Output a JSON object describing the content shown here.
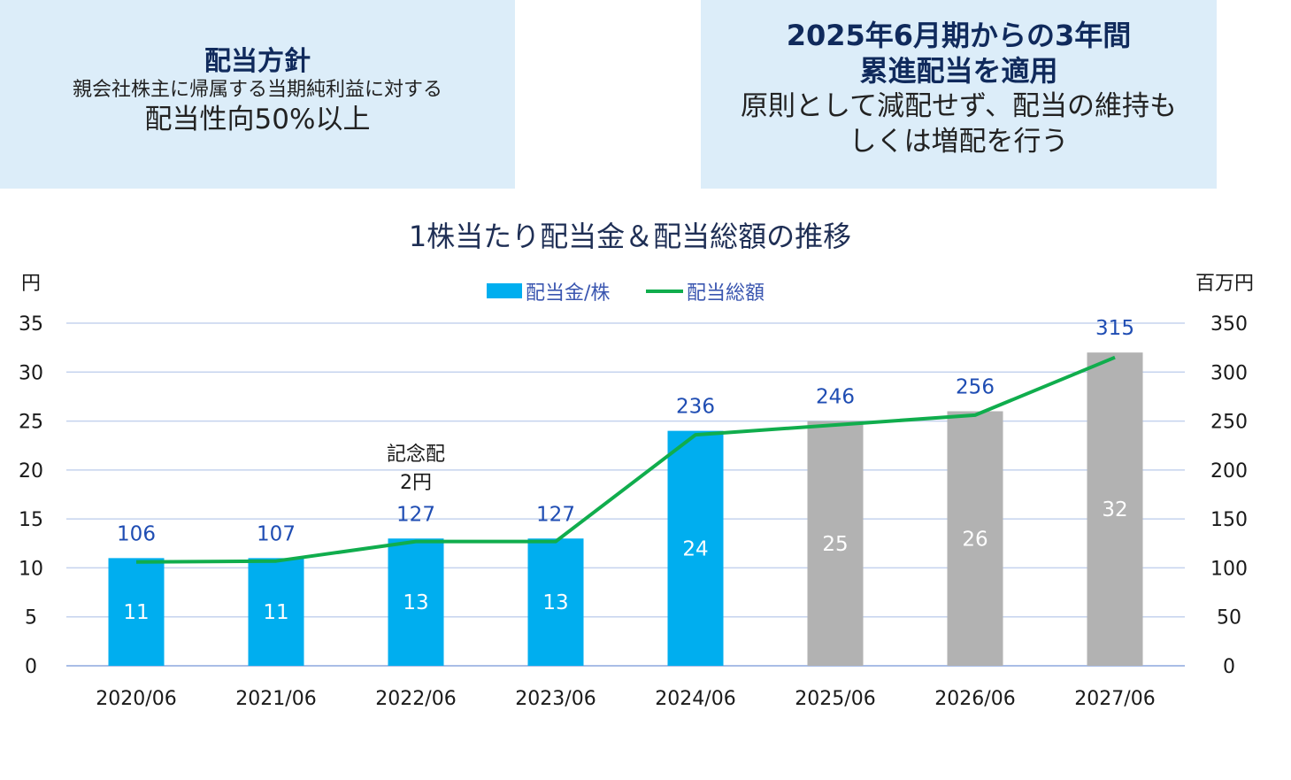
{
  "policy_box": {
    "heading": "配当方針",
    "line1": "親会社株主に帰属する当期純利益に対する",
    "line2": "配当性向50%以上"
  },
  "progressive_box": {
    "heading_line1": "2025年6月期からの3年間",
    "heading_line2": "累進配当を適用",
    "body_line1": "原則として減配せず、配当の維持も",
    "body_line2": "しくは増配を行う"
  },
  "chart_data": {
    "type": "bar",
    "title": "1株当たり配当金＆配当総額の推移",
    "left_unit": "円",
    "right_unit": "百万円",
    "categories": [
      "2020/06",
      "2021/06",
      "2022/06",
      "2023/06",
      "2024/06",
      "2025/06",
      "2026/06",
      "2027/06"
    ],
    "series": [
      {
        "name": "配当金/株",
        "type": "bar",
        "axis": "left",
        "values": [
          11,
          11,
          13,
          13,
          24,
          25,
          26,
          32
        ],
        "forecast_from_index": 5
      },
      {
        "name": "配当総額",
        "type": "line",
        "axis": "right",
        "values": [
          106,
          107,
          127,
          127,
          236,
          246,
          256,
          315
        ]
      }
    ],
    "left_ticks": [
      "0",
      "5",
      "10",
      "15",
      "20",
      "25",
      "30",
      "35"
    ],
    "right_ticks": [
      "0",
      "50",
      "100",
      "150",
      "200",
      "250",
      "300",
      "350"
    ],
    "ylim_left": [
      0,
      35
    ],
    "ylim_right": [
      0,
      350
    ],
    "annotation": {
      "line1": "記念配",
      "line2": "2円",
      "category": "2022/06"
    },
    "colors": {
      "bar": "#00aeef",
      "forecast_bar": "#b2b2b2",
      "line": "#10ad4d",
      "grid": "#c5d3ee"
    }
  }
}
